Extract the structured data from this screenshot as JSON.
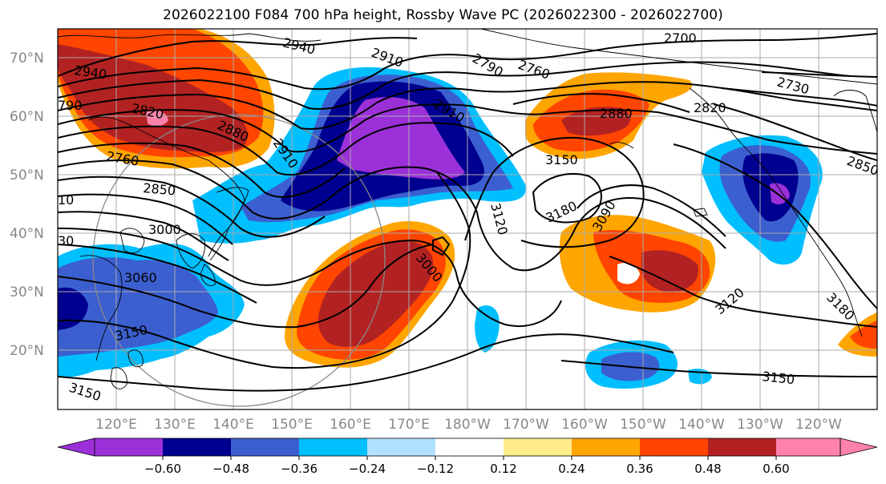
{
  "title": "2026022100 F084 700 hPa height, Rossby Wave PC (2026022300 - 2026022700)",
  "lat_labels": [
    "70°N",
    "60°N",
    "50°N",
    "40°N",
    "30°N",
    "20°N"
  ],
  "lon_labels": [
    "120°E",
    "130°E",
    "140°E",
    "150°E",
    "160°E",
    "170°E",
    "180°W",
    "170°W",
    "160°W",
    "150°W",
    "140°W",
    "130°W",
    "120°W"
  ],
  "contour_labels": [
    "2940",
    "2910",
    "2790",
    "2760",
    "2700",
    "2730",
    "2940",
    "790",
    "2820",
    "2880",
    "2910",
    "2910",
    "2820",
    "2880",
    "2760",
    "2850",
    "2850",
    "3150",
    "10",
    "3180",
    "3000",
    "3090",
    "3120",
    "30",
    "3000",
    "3060",
    "3120",
    "3150",
    "3180",
    "3150",
    "3150"
  ],
  "colorbar": {
    "tick_labels": [
      "−0.60",
      "−0.48",
      "−0.36",
      "−0.24",
      "−0.12",
      "0.12",
      "0.24",
      "0.36",
      "0.48",
      "0.60"
    ],
    "colors": [
      "#9b30d9",
      "#000090",
      "#3c5fd0",
      "#00bfff",
      "#b0e2ff",
      "#ffffff",
      "#ffec8b",
      "#ffa500",
      "#ff4500",
      "#b22222",
      "#ff82ab"
    ]
  },
  "colors": {
    "grid": "#aaaaaa",
    "axis_label": "#888888",
    "contour": "#000000"
  }
}
